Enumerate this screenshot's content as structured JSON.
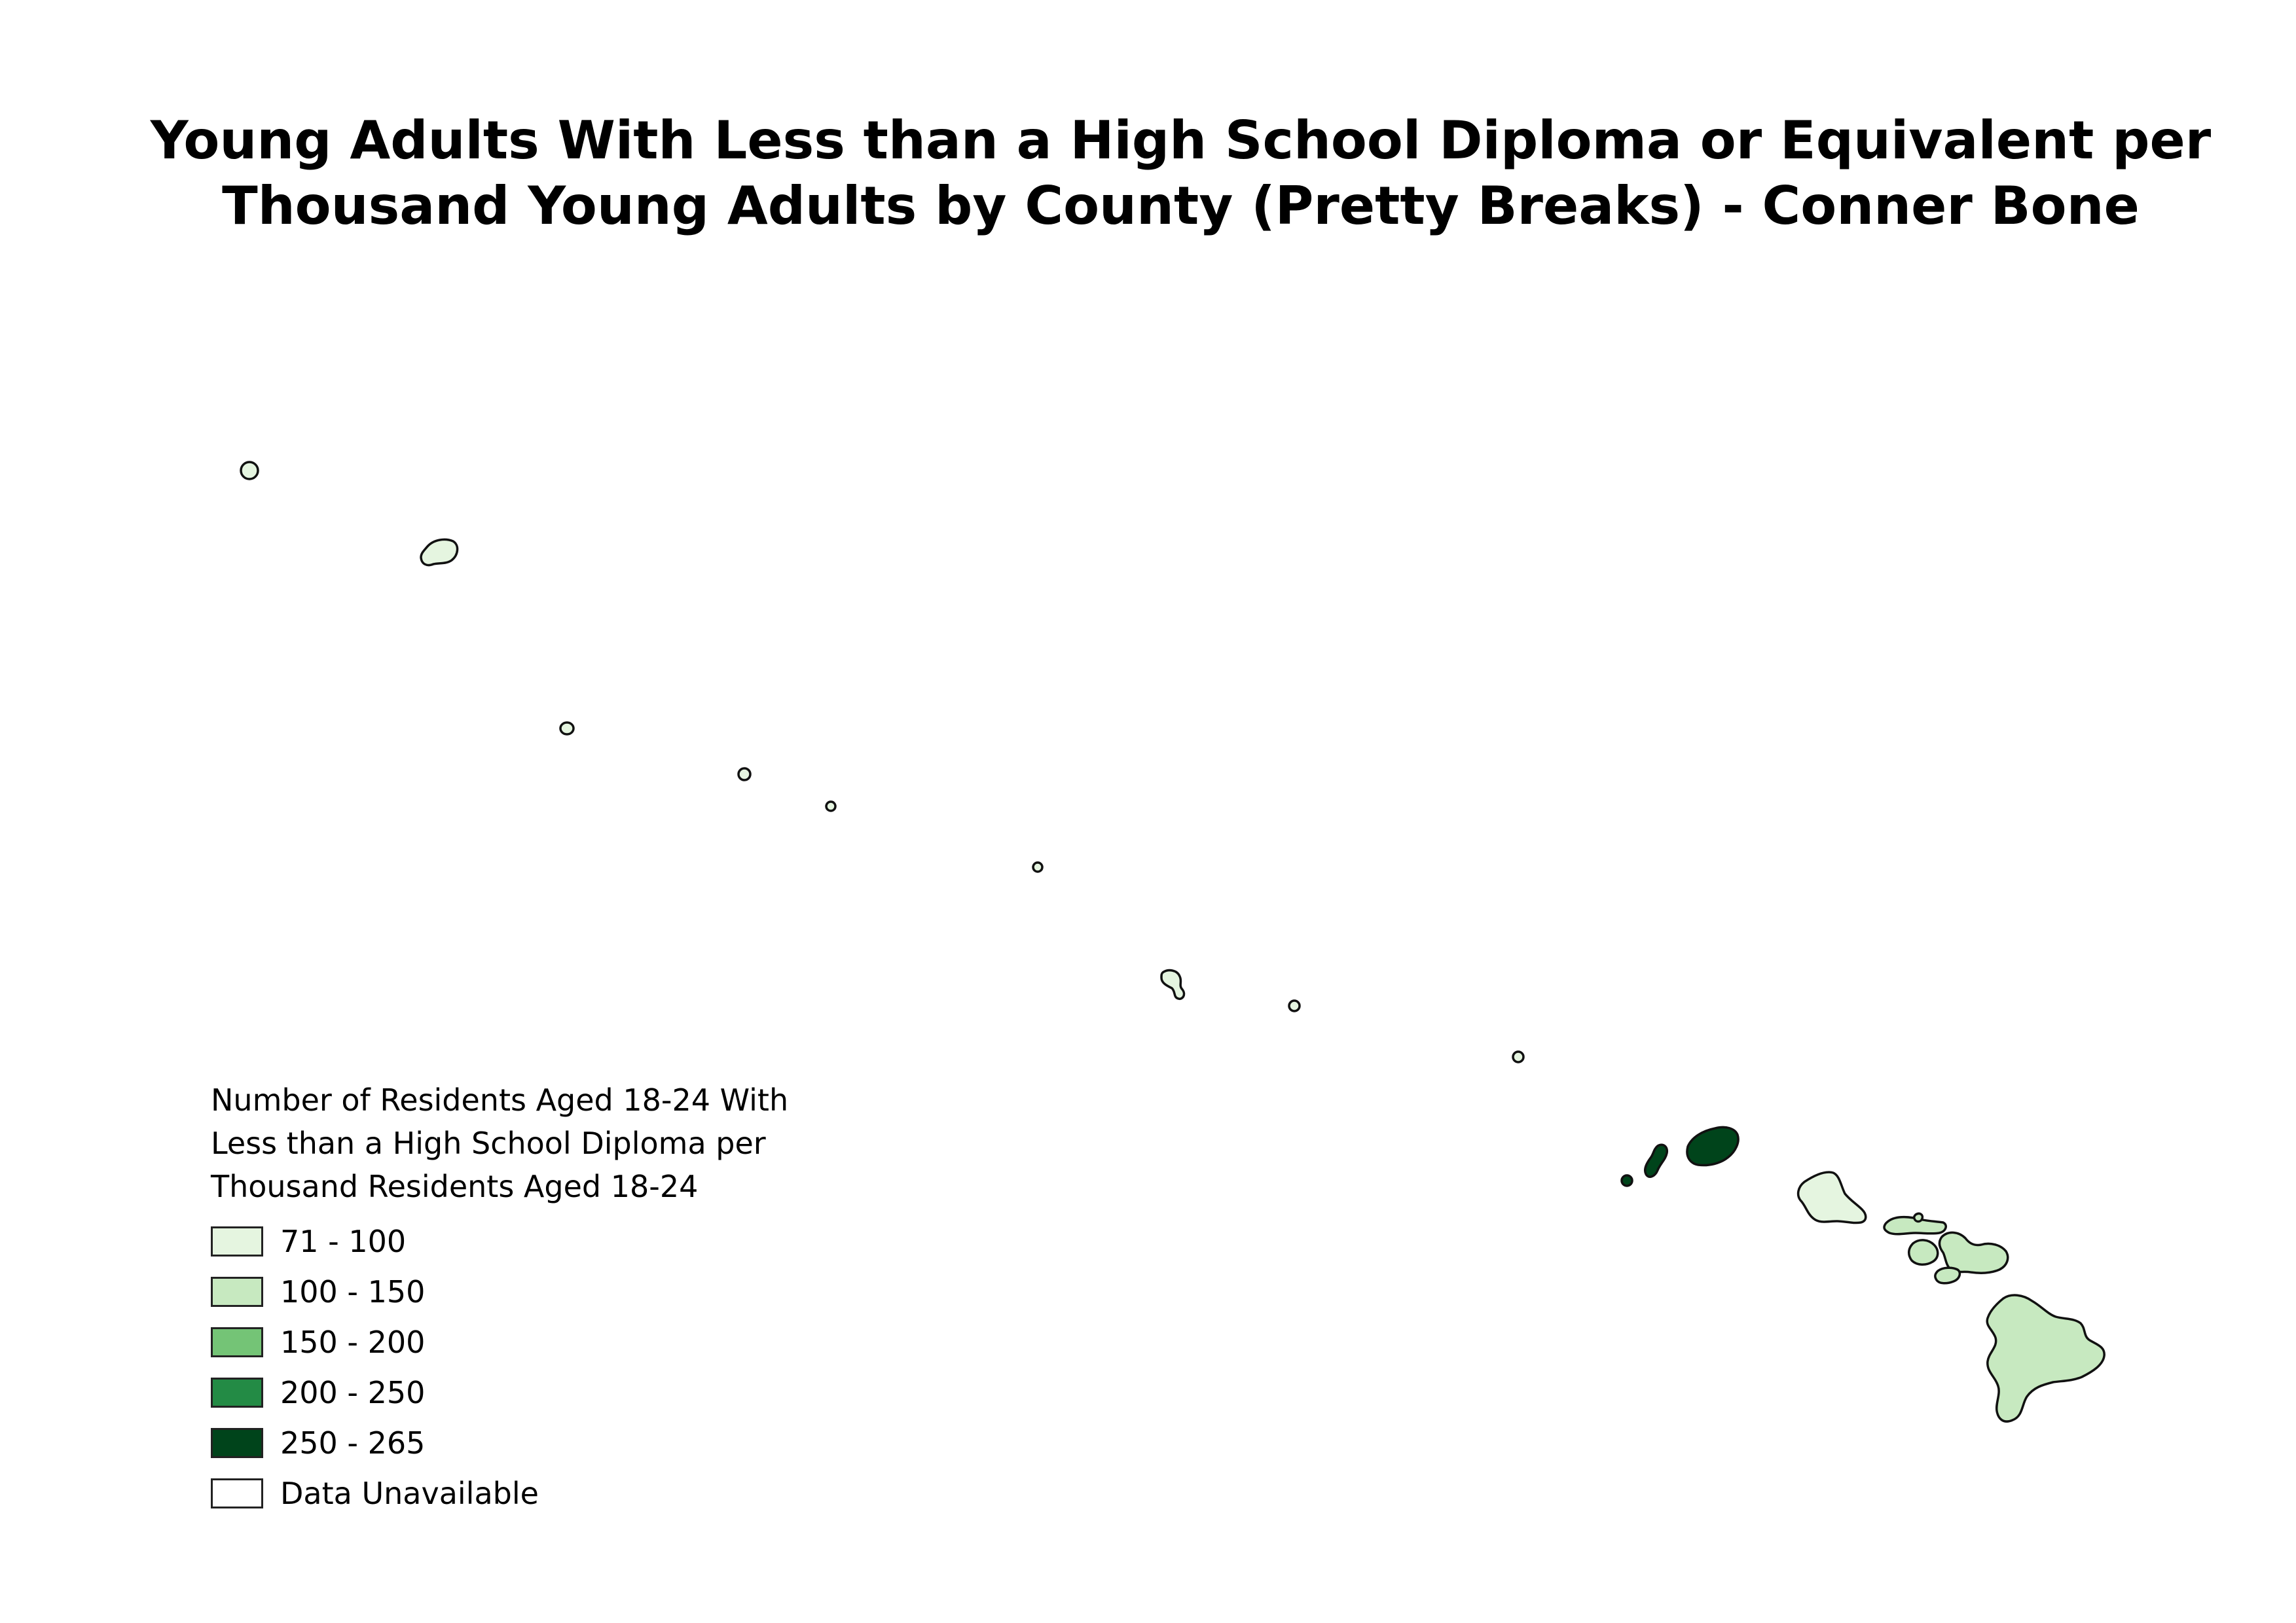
{
  "map": {
    "title_line1": "Young Adults With Less than a High School Diploma or Equivalent per",
    "title_line2": "Thousand Young Adults by County (Pretty Breaks) - Conner Bone",
    "background_color": "#ffffff",
    "boundary_color": "#111111"
  },
  "legend": {
    "title_line1": "Number of Residents Aged 18-24 With",
    "title_line2": "Less than a High School Diploma per",
    "title_line3": "Thousand Residents Aged 18-24",
    "classes": [
      {
        "label": "71 - 100",
        "color": "#e5f5e0"
      },
      {
        "label": "100 - 150",
        "color": "#c7e9c0"
      },
      {
        "label": "150 - 200",
        "color": "#74c476"
      },
      {
        "label": "200 - 250",
        "color": "#238b45"
      },
      {
        "label": "250 - 265",
        "color": "#00441b"
      },
      {
        "label": "Data Unavailable",
        "color": "#ffffff"
      }
    ]
  },
  "regions": [
    {
      "name": "kure-atoll",
      "class": 0
    },
    {
      "name": "midway-atoll",
      "class": 0
    },
    {
      "name": "pearl-and-hermes",
      "class": 0
    },
    {
      "name": "lisianski",
      "class": 0
    },
    {
      "name": "laysan",
      "class": 0
    },
    {
      "name": "maro-reef",
      "class": 0
    },
    {
      "name": "french-frigate-shoals",
      "class": 0
    },
    {
      "name": "necker",
      "class": 0
    },
    {
      "name": "nihoa",
      "class": 0
    },
    {
      "name": "kauai-county",
      "class": 4
    },
    {
      "name": "honolulu-county",
      "class": 0
    },
    {
      "name": "maui-county",
      "class": 1
    },
    {
      "name": "hawaii-county",
      "class": 1
    }
  ]
}
